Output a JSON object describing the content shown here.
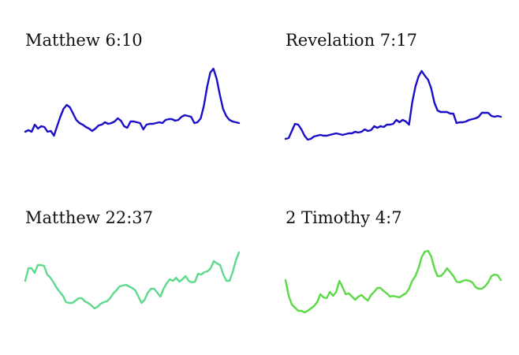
{
  "chart_data": [
    {
      "type": "line",
      "title": "Matthew 6:10",
      "color": "#1a0ec6",
      "values": [
        13,
        15,
        13,
        22,
        17,
        20,
        19,
        13,
        14,
        8,
        20,
        32,
        42,
        47,
        44,
        36,
        28,
        24,
        22,
        19,
        17,
        14,
        17,
        21,
        22,
        25,
        23,
        24,
        26,
        30,
        27,
        20,
        18,
        26,
        26,
        25,
        24,
        16,
        22,
        23,
        23,
        24,
        25,
        24,
        28,
        29,
        29,
        27,
        28,
        32,
        34,
        33,
        32,
        24,
        25,
        30,
        46,
        70,
        88,
        93,
        80,
        60,
        42,
        33,
        28,
        26,
        25,
        24
      ]
    },
    {
      "type": "line",
      "title": "Revelation 7:17",
      "color": "#1a0ec6",
      "values": [
        4,
        5,
        14,
        23,
        22,
        16,
        8,
        3,
        4,
        7,
        8,
        9,
        8,
        8,
        9,
        10,
        11,
        10,
        9,
        10,
        11,
        11,
        13,
        12,
        13,
        16,
        14,
        15,
        20,
        18,
        20,
        19,
        22,
        22,
        23,
        28,
        25,
        28,
        26,
        22,
        50,
        70,
        83,
        90,
        84,
        79,
        68,
        50,
        40,
        38,
        38,
        38,
        36,
        36,
        24,
        25,
        25,
        26,
        28,
        29,
        30,
        32,
        37,
        37,
        37,
        33,
        32,
        33,
        32
      ]
    },
    {
      "type": "line",
      "title": "Matthew 22:37",
      "color": "#5fd98c",
      "values": [
        44,
        60,
        60,
        54,
        64,
        64,
        63,
        52,
        48,
        42,
        35,
        30,
        25,
        17,
        16,
        16,
        19,
        22,
        22,
        18,
        16,
        13,
        9,
        11,
        15,
        17,
        18,
        22,
        28,
        32,
        37,
        38,
        39,
        37,
        35,
        32,
        24,
        16,
        20,
        29,
        34,
        34,
        29,
        24,
        34,
        41,
        46,
        44,
        48,
        43,
        46,
        50,
        44,
        42,
        43,
        53,
        52,
        55,
        56,
        60,
        69,
        66,
        64,
        52,
        44,
        44,
        55,
        70,
        80
      ]
    },
    {
      "type": "line",
      "title": "2 Timothy 4:7",
      "color": "#5cd946",
      "values": [
        45,
        25,
        14,
        10,
        6,
        6,
        4,
        6,
        9,
        12,
        17,
        27,
        23,
        22,
        30,
        25,
        30,
        44,
        36,
        27,
        28,
        24,
        20,
        24,
        26,
        22,
        19,
        26,
        30,
        35,
        35,
        31,
        28,
        24,
        25,
        24,
        23,
        26,
        28,
        34,
        44,
        50,
        60,
        74,
        81,
        82,
        75,
        60,
        50,
        50,
        54,
        60,
        55,
        50,
        43,
        42,
        44,
        45,
        44,
        42,
        36,
        34,
        34,
        37,
        42,
        50,
        52,
        51,
        45
      ]
    }
  ]
}
